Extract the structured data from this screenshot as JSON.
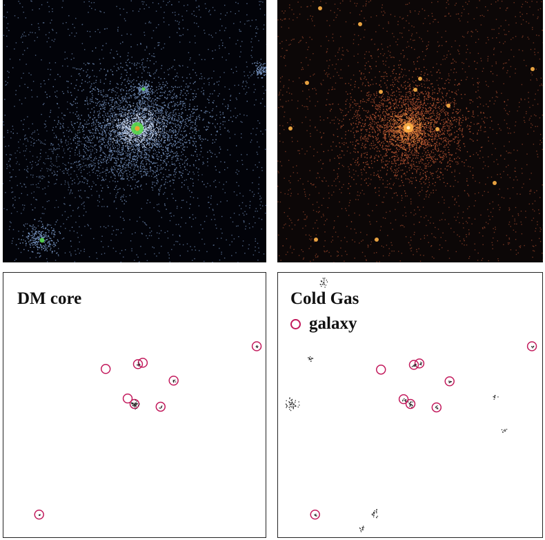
{
  "panels": {
    "dm_core": {
      "label": "DM core"
    },
    "cold_gas": {
      "label": "Cold Gas"
    }
  },
  "legend": {
    "label": "galaxy",
    "marker_color": "#c2185b"
  },
  "colors": {
    "dm_map_background": "#020309",
    "dm_particles": "#8fb3e8",
    "dm_center": "#57d64a",
    "gas_map_background": "#0c0707",
    "gas_particles": "#d8623a",
    "gas_center": "#ffb347",
    "circle": "#c2185b",
    "clump": "#222222"
  }
}
